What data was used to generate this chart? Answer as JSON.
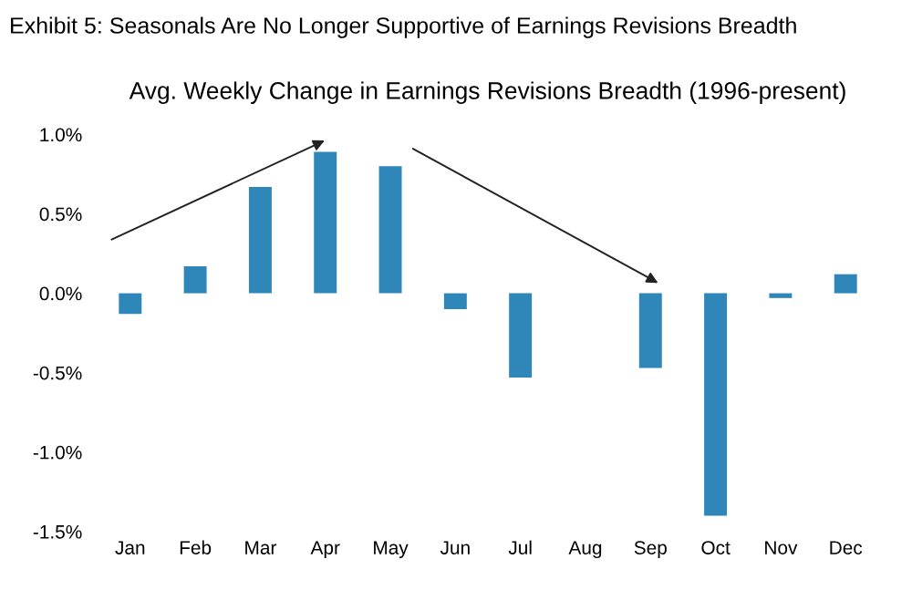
{
  "chart_data": {
    "type": "bar",
    "title": "Exhibit 5: Seasonals Are No Longer Supportive of Earnings Revisions Breadth",
    "subtitle": "Avg. Weekly Change in Earnings Revisions Breadth (1996-present)",
    "categories": [
      "Jan",
      "Feb",
      "Mar",
      "Apr",
      "May",
      "Jun",
      "Jul",
      "Aug",
      "Sep",
      "Oct",
      "Nov",
      "Dec"
    ],
    "values": [
      -0.13,
      0.17,
      0.67,
      0.89,
      0.8,
      -0.1,
      -0.53,
      0.0,
      -0.47,
      -1.4,
      -0.03,
      0.12
    ],
    "color": "#2e86b9",
    "ylim": [
      -1.5,
      1.0
    ],
    "yticks": [
      {
        "value": -1.5,
        "label": "-1.5%"
      },
      {
        "value": -1.0,
        "label": "-1.0%"
      },
      {
        "value": -0.5,
        "label": "-0.5%"
      },
      {
        "value": 0.0,
        "label": "0.0%"
      },
      {
        "value": 0.5,
        "label": "0.5%"
      },
      {
        "value": 1.0,
        "label": "1.0%"
      }
    ],
    "grid": false,
    "legend": false
  }
}
